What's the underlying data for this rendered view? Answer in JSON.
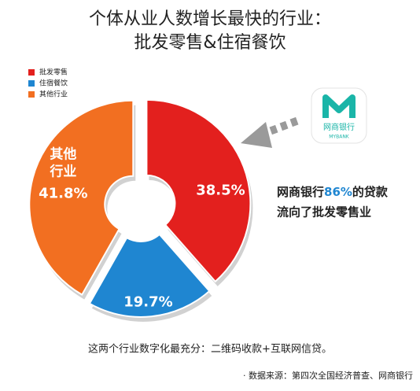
{
  "chart_data": {
    "type": "pie",
    "title": "个体从业人数增长最快的行业：",
    "subtitle": "批发零售&住宿餐饮",
    "categories": [
      "批发零售",
      "住宿餐饮",
      "其他行业"
    ],
    "values": [
      38.5,
      19.7,
      41.8
    ],
    "value_labels": [
      "38.5%",
      "19.7%",
      "41.8%"
    ],
    "colors": [
      "#e3201e",
      "#1f86d1",
      "#f26f21"
    ],
    "inner_label_lines": [
      null,
      null,
      [
        "其他",
        "行业"
      ]
    ],
    "donut": true,
    "legend": "top-left",
    "annotation": {
      "parts": [
        "网商银行",
        "86%",
        "的贷款"
      ],
      "line2": "流向了批发零售业"
    },
    "logo": {
      "name": "网商银行",
      "sub": "MYBANK"
    },
    "footnote": "这两个行业数字化最充分：二维码收款+互联网信贷。",
    "source": "· 数据来源：第四次全国经济普查、网商银行"
  }
}
